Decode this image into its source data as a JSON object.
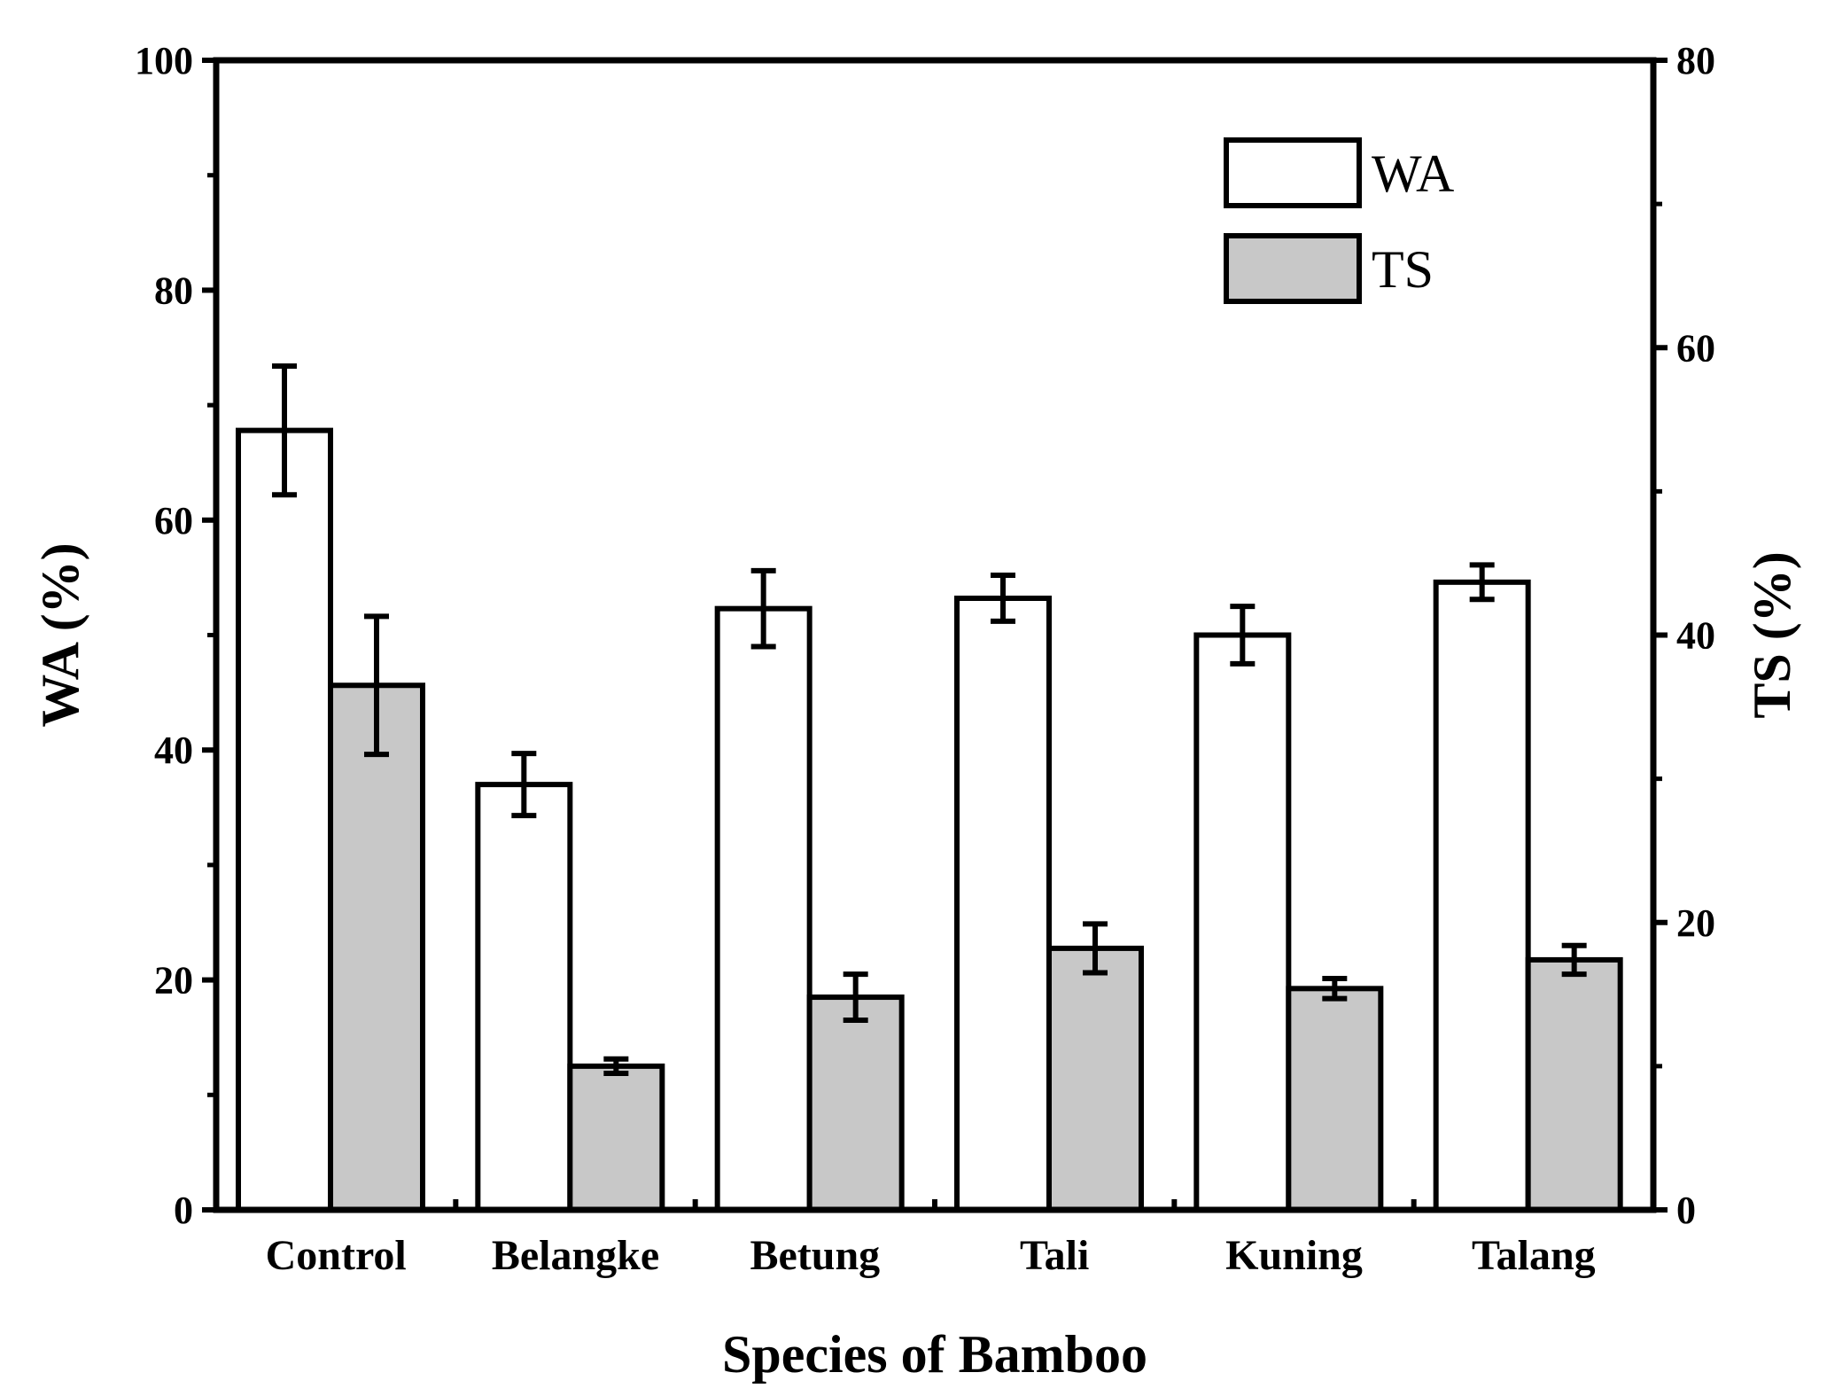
{
  "chart_data": {
    "type": "bar",
    "categories": [
      "Control",
      "Belangke",
      "Betung",
      "Tali",
      "Kuning",
      "Talang"
    ],
    "series": [
      {
        "name": "WA",
        "axis": "left",
        "color": "#ffffff",
        "values": [
          67.8,
          37.0,
          52.3,
          53.2,
          50.0,
          54.6
        ],
        "errors": [
          5.6,
          2.7,
          3.3,
          2.0,
          2.5,
          1.5
        ]
      },
      {
        "name": "TS",
        "axis": "right",
        "color": "#c8c8c8",
        "values": [
          36.5,
          10.0,
          14.8,
          18.2,
          15.4,
          17.4
        ],
        "errors": [
          4.8,
          0.5,
          1.6,
          1.7,
          0.7,
          1.0
        ]
      }
    ],
    "xlabel": "Species of Bamboo",
    "ylabel": "WA (%)",
    "y2label": "TS (%)",
    "ylim": [
      0,
      100
    ],
    "y2lim": [
      0,
      80
    ],
    "yticks": [
      0,
      20,
      40,
      60,
      80,
      100
    ],
    "y2ticks": [
      0,
      20,
      40,
      60,
      80
    ],
    "grid": false,
    "legend_position": "top-right"
  }
}
